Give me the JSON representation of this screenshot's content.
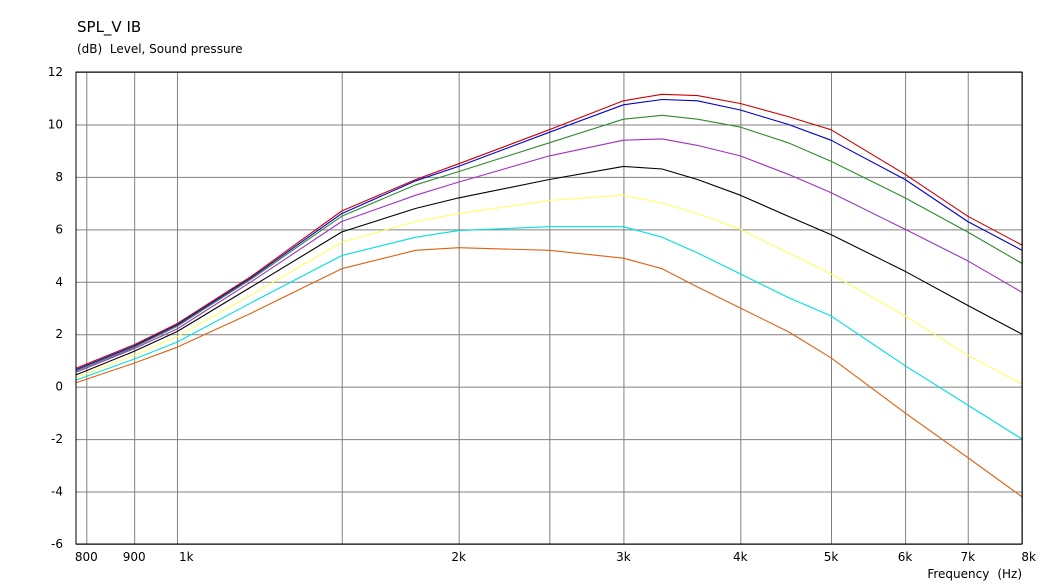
{
  "chart_data": {
    "type": "line",
    "title": "SPL_V IB",
    "ylabel_unit": "(dB)",
    "ylabel": "Level, Sound pressure",
    "xlabel": "Frequency",
    "xlabel_unit": "(Hz)",
    "x_scale": "log",
    "xlim": [
      780,
      8000
    ],
    "ylim": [
      -6,
      12
    ],
    "grid": true,
    "y_ticks": [
      12,
      10,
      8,
      6,
      4,
      2,
      0,
      -2,
      -4,
      -6
    ],
    "y_tick_labels": [
      "12",
      "10",
      "8",
      "6",
      "4",
      "2",
      "0",
      "-2",
      "-4",
      "-6"
    ],
    "x_ticks": [
      800,
      900,
      1000,
      2000,
      3000,
      4000,
      5000,
      6000,
      7000,
      8000
    ],
    "x_tick_labels": [
      "800",
      "900",
      "1k",
      "2k",
      "3k",
      "4k",
      "5k",
      "6k",
      "7k",
      "8k"
    ],
    "x_minor_grid": [
      1500,
      2500
    ],
    "x": [
      780,
      900,
      1000,
      1200,
      1500,
      1800,
      2000,
      2500,
      3000,
      3300,
      3600,
      4000,
      4500,
      5000,
      6000,
      7000,
      8000
    ],
    "series": [
      {
        "color": "#cc0000",
        "values": [
          0.7,
          1.6,
          2.4,
          4.2,
          6.7,
          7.9,
          8.5,
          9.8,
          10.9,
          11.15,
          11.1,
          10.8,
          10.3,
          9.8,
          8.1,
          6.5,
          5.4
        ]
      },
      {
        "color": "#0000cc",
        "values": [
          0.65,
          1.55,
          2.35,
          4.15,
          6.6,
          7.85,
          8.4,
          9.7,
          10.75,
          10.95,
          10.9,
          10.55,
          10.0,
          9.4,
          7.9,
          6.3,
          5.2
        ]
      },
      {
        "color": "#2e8b2e",
        "values": [
          0.6,
          1.5,
          2.3,
          4.1,
          6.5,
          7.7,
          8.2,
          9.3,
          10.2,
          10.35,
          10.2,
          9.9,
          9.3,
          8.6,
          7.2,
          5.9,
          4.7
        ]
      },
      {
        "color": "#a030c0",
        "values": [
          0.55,
          1.45,
          2.2,
          4.0,
          6.3,
          7.3,
          7.8,
          8.8,
          9.4,
          9.45,
          9.2,
          8.8,
          8.1,
          7.4,
          6.0,
          4.8,
          3.6
        ]
      },
      {
        "color": "#000000",
        "values": [
          0.45,
          1.35,
          2.1,
          3.8,
          5.9,
          6.8,
          7.2,
          7.9,
          8.4,
          8.3,
          7.9,
          7.3,
          6.5,
          5.8,
          4.4,
          3.1,
          2.0
        ]
      },
      {
        "color": "#ffff66",
        "values": [
          0.35,
          1.2,
          1.9,
          3.5,
          5.5,
          6.3,
          6.6,
          7.1,
          7.3,
          7.0,
          6.6,
          6.0,
          5.1,
          4.3,
          2.7,
          1.2,
          0.1
        ]
      },
      {
        "color": "#00e0e0",
        "values": [
          0.25,
          1.05,
          1.7,
          3.2,
          5.0,
          5.7,
          5.95,
          6.1,
          6.1,
          5.7,
          5.1,
          4.3,
          3.4,
          2.7,
          0.8,
          -0.7,
          -2.0
        ]
      },
      {
        "color": "#e06010",
        "values": [
          0.15,
          0.9,
          1.5,
          2.8,
          4.5,
          5.2,
          5.3,
          5.2,
          4.9,
          4.5,
          3.8,
          3.0,
          2.1,
          1.1,
          -1.0,
          -2.7,
          -4.2
        ]
      }
    ]
  }
}
